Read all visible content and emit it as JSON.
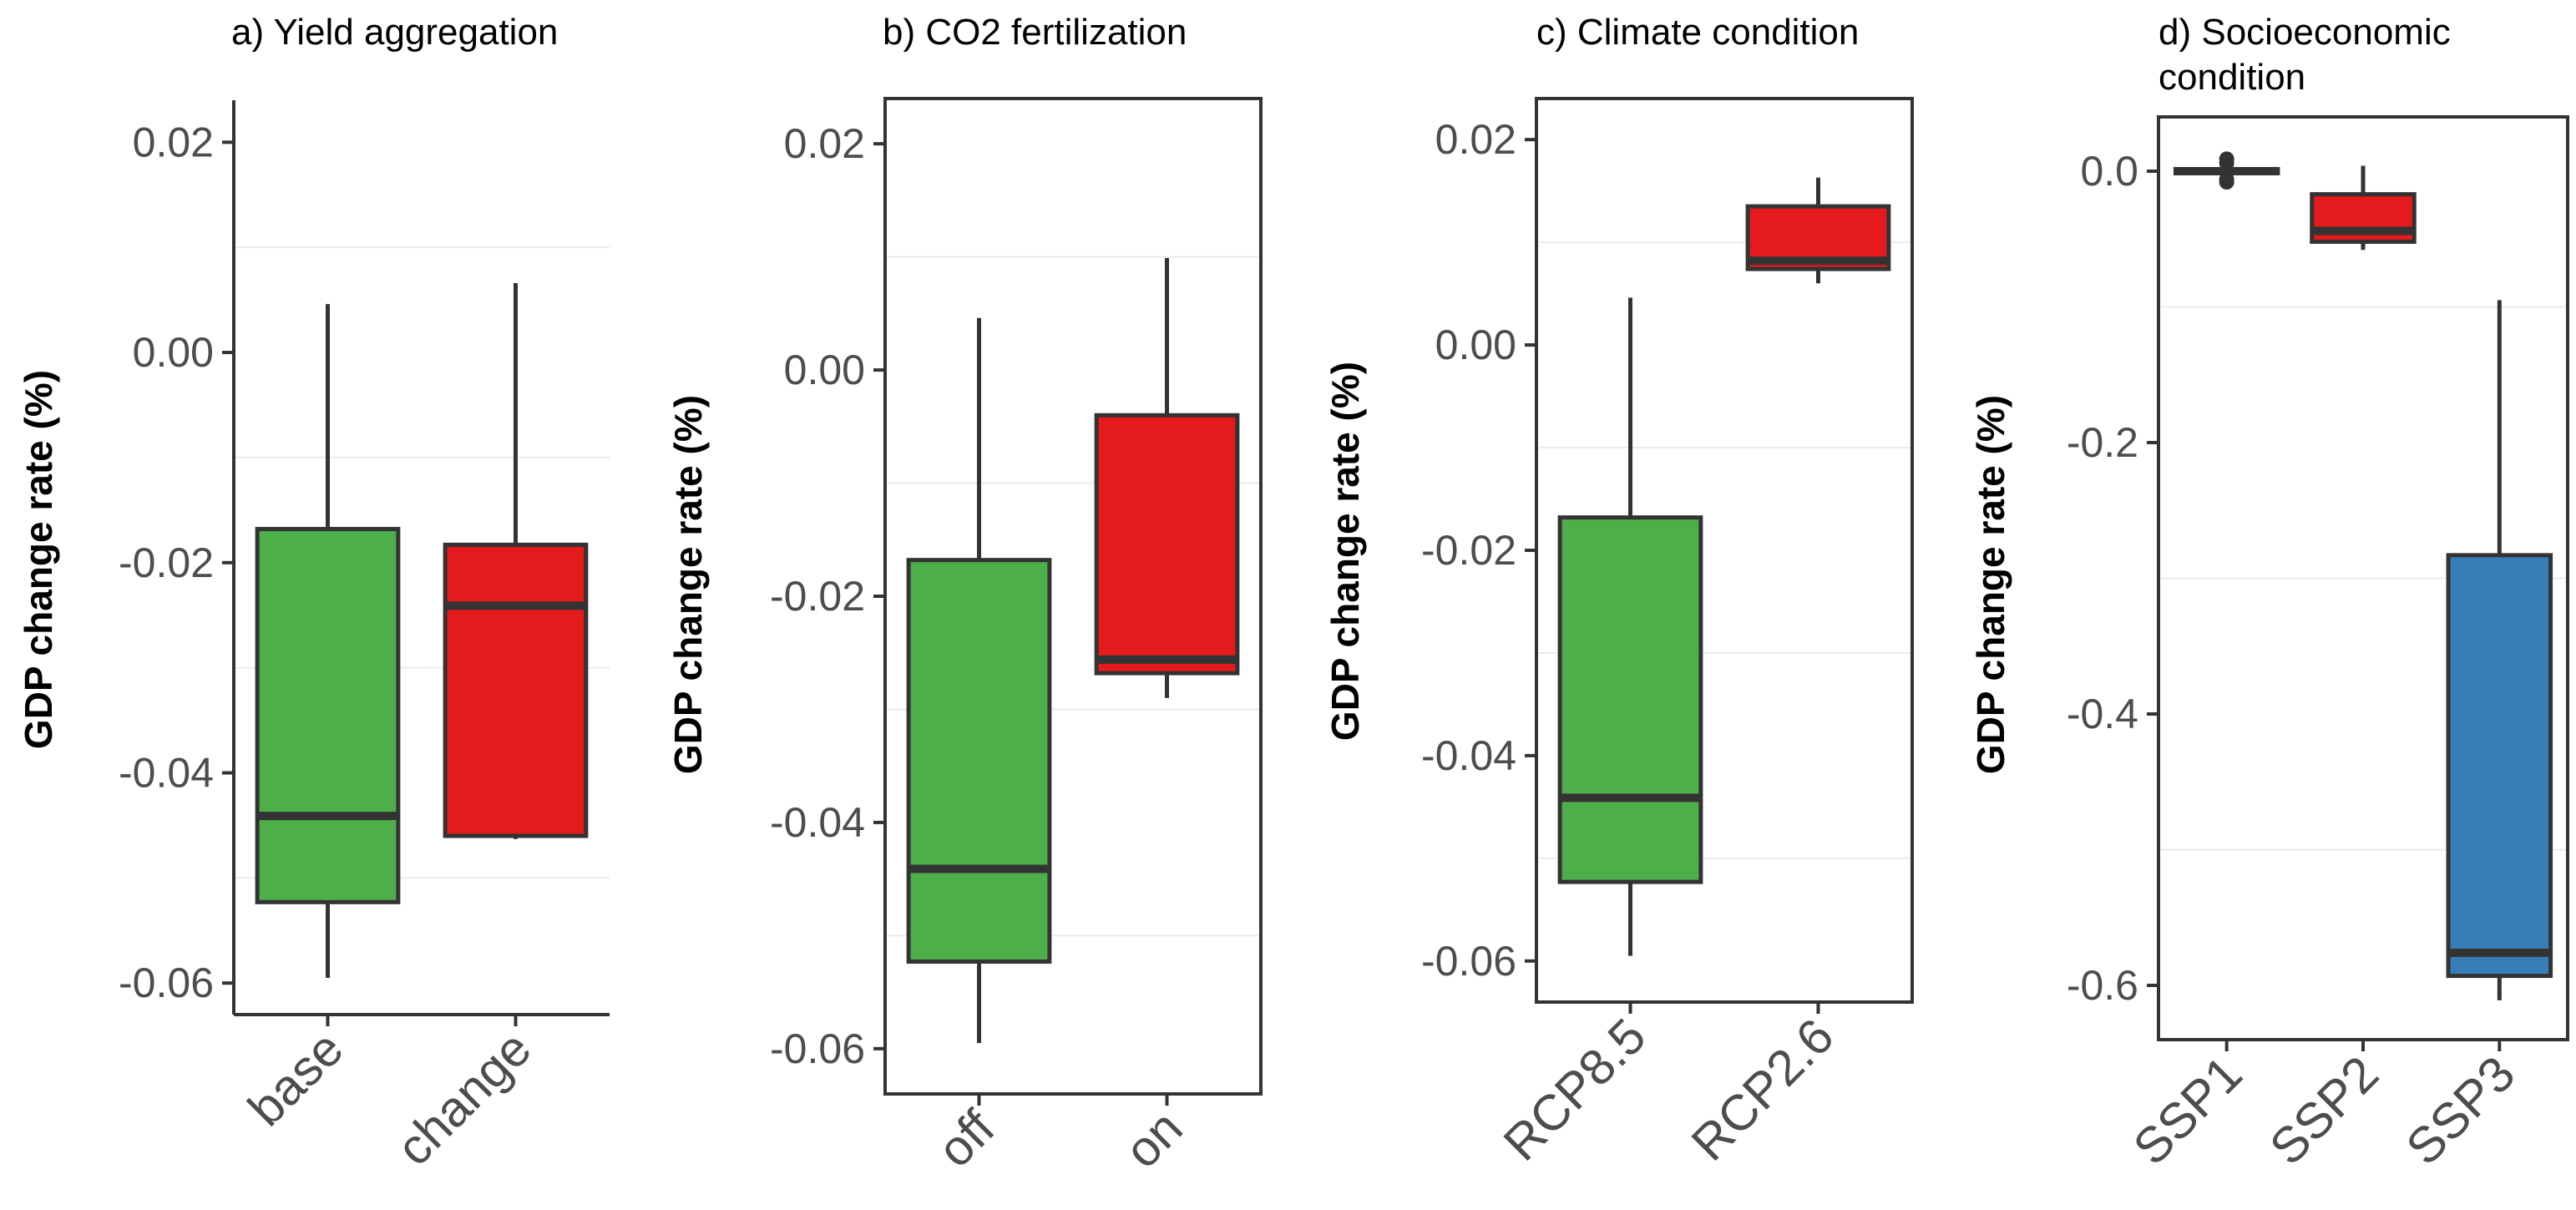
{
  "chart_data": [
    {
      "type": "box",
      "title": "a) Yield aggregation",
      "ylabel": "GDP change rate (%)",
      "xlabel": "",
      "ylim": [
        -0.063,
        0.024
      ],
      "yticks": [
        -0.06,
        -0.04,
        -0.02,
        0.0,
        0.02
      ],
      "ytick_labels": [
        "-0.06",
        "-0.04",
        "-0.02",
        "0.00",
        "0.02"
      ],
      "minor_grid": [
        -0.05,
        -0.03,
        -0.01,
        0.01
      ],
      "categories": [
        "base",
        "change"
      ],
      "boxes": [
        {
          "category": "base",
          "min": -0.0595,
          "q1": -0.0523,
          "median": -0.0441,
          "q3": -0.0168,
          "max": 0.0046,
          "color": "#4daf4a",
          "outliers": []
        },
        {
          "category": "change",
          "min": -0.0463,
          "q1": -0.046,
          "median": -0.0241,
          "q3": -0.0183,
          "max": 0.0066,
          "color": "#e41a1c",
          "outliers": []
        }
      ]
    },
    {
      "type": "box",
      "title": "b) CO2 fertilization",
      "ylabel": "GDP change rate (%)",
      "xlabel": "",
      "ylim": [
        -0.064,
        0.024
      ],
      "yticks": [
        -0.06,
        -0.04,
        -0.02,
        0.0,
        0.02
      ],
      "ytick_labels": [
        "-0.06",
        "-0.04",
        "-0.02",
        "0.00",
        "0.02"
      ],
      "minor_grid": [
        -0.05,
        -0.03,
        -0.01,
        0.01
      ],
      "categories": [
        "off",
        "on"
      ],
      "boxes": [
        {
          "category": "off",
          "min": -0.0595,
          "q1": -0.0523,
          "median": -0.0441,
          "q3": -0.0168,
          "max": 0.0046,
          "color": "#4daf4a",
          "outliers": []
        },
        {
          "category": "on",
          "min": -0.029,
          "q1": -0.0268,
          "median": -0.0256,
          "q3": -0.004,
          "max": 0.0099,
          "color": "#e41a1c",
          "outliers": []
        }
      ]
    },
    {
      "type": "box",
      "title": "c) Climate condition",
      "ylabel": "GDP change rate (%)",
      "xlabel": "",
      "ylim": [
        -0.064,
        0.024
      ],
      "yticks": [
        -0.06,
        -0.04,
        -0.02,
        0.0,
        0.02
      ],
      "ytick_labels": [
        "-0.06",
        "-0.04",
        "-0.02",
        "0.00",
        "0.02"
      ],
      "minor_grid": [
        -0.05,
        -0.03,
        -0.01,
        0.01
      ],
      "categories": [
        "RCP8.5",
        "RCP2.6"
      ],
      "boxes": [
        {
          "category": "RCP8.5",
          "min": -0.0595,
          "q1": -0.0523,
          "median": -0.0441,
          "q3": -0.0168,
          "max": 0.0046,
          "color": "#4daf4a",
          "outliers": []
        },
        {
          "category": "RCP2.6",
          "min": 0.006,
          "q1": 0.0074,
          "median": 0.0082,
          "q3": 0.0135,
          "max": 0.0163,
          "color": "#e41a1c",
          "outliers": []
        }
      ]
    },
    {
      "type": "box",
      "title": "d) Socioeconomic condition",
      "title_lines": [
        "d) Socioeconomic",
        "condition"
      ],
      "ylabel": "GDP change rate (%)",
      "xlabel": "",
      "ylim": [
        -0.64,
        0.04
      ],
      "yticks": [
        -0.6,
        -0.4,
        -0.2,
        0.0
      ],
      "ytick_labels": [
        "-0.6",
        "-0.4",
        "-0.2",
        "0.0"
      ],
      "minor_grid": [
        -0.5,
        -0.3,
        -0.1
      ],
      "categories": [
        "SSP1",
        "SSP2",
        "SSP3"
      ],
      "boxes": [
        {
          "category": "SSP1",
          "min": -0.004,
          "q1": -0.0015,
          "median": 0.0,
          "q3": 0.0015,
          "max": 0.0045,
          "color": "#4daf4a",
          "outliers": [
            -0.008,
            -0.006,
            0.006,
            0.009
          ]
        },
        {
          "category": "SSP2",
          "min": -0.058,
          "q1": -0.052,
          "median": -0.044,
          "q3": -0.017,
          "max": 0.004,
          "color": "#e41a1c",
          "outliers": []
        },
        {
          "category": "SSP3",
          "min": -0.611,
          "q1": -0.593,
          "median": -0.576,
          "q3": -0.283,
          "max": -0.095,
          "color": "#377eb8",
          "outliers": []
        }
      ]
    }
  ]
}
